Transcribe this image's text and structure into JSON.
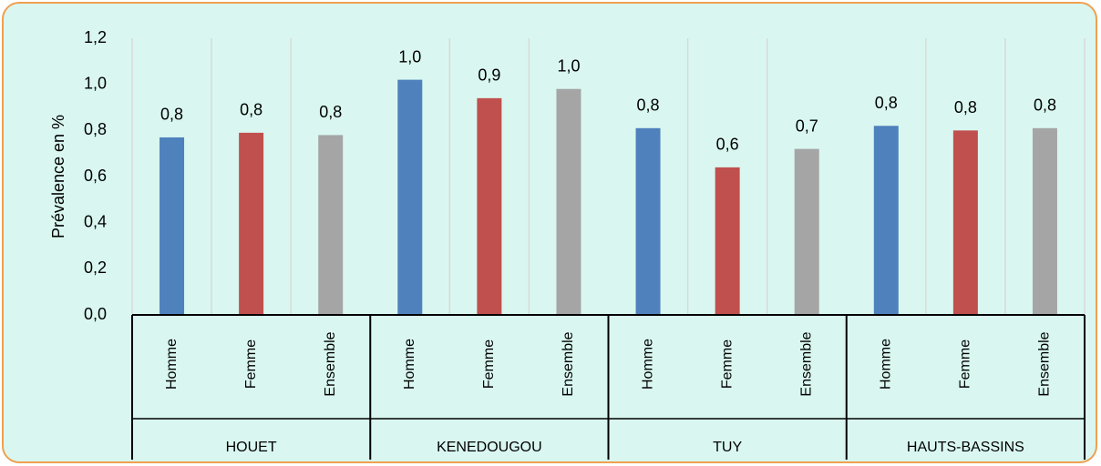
{
  "chart_data": {
    "type": "bar",
    "y_label": "Prévalence en %",
    "groups": [
      "HOUET",
      "KENEDOUGOU",
      "TUY",
      "HAUTS-BASSINS"
    ],
    "series": [
      {
        "name": "Homme",
        "color": "#4f81bd",
        "values": [
          0.77,
          1.02,
          0.81,
          0.82
        ],
        "value_labels": [
          "0,8",
          "1,0",
          "0,8",
          "0,8"
        ]
      },
      {
        "name": "Femme",
        "color": "#c0504d",
        "values": [
          0.79,
          0.94,
          0.64,
          0.8
        ],
        "value_labels": [
          "0,8",
          "0,9",
          "0,6",
          "0,8"
        ]
      },
      {
        "name": "Ensemble",
        "color": "#a5a5a5",
        "values": [
          0.78,
          0.98,
          0.72,
          0.81
        ],
        "value_labels": [
          "0,8",
          "1,0",
          "0,7",
          "0,8"
        ]
      }
    ],
    "ylim": [
      0,
      1.2
    ],
    "yticks": [
      {
        "value": 0,
        "label": "0,0"
      },
      {
        "value": 0.2,
        "label": "0,2"
      },
      {
        "value": 0.4,
        "label": "0,4"
      },
      {
        "value": 0.6,
        "label": "0,6"
      },
      {
        "value": 0.8,
        "label": "0,8"
      },
      {
        "value": 1.0,
        "label": "1,0"
      },
      {
        "value": 1.2,
        "label": "1,2"
      }
    ]
  }
}
